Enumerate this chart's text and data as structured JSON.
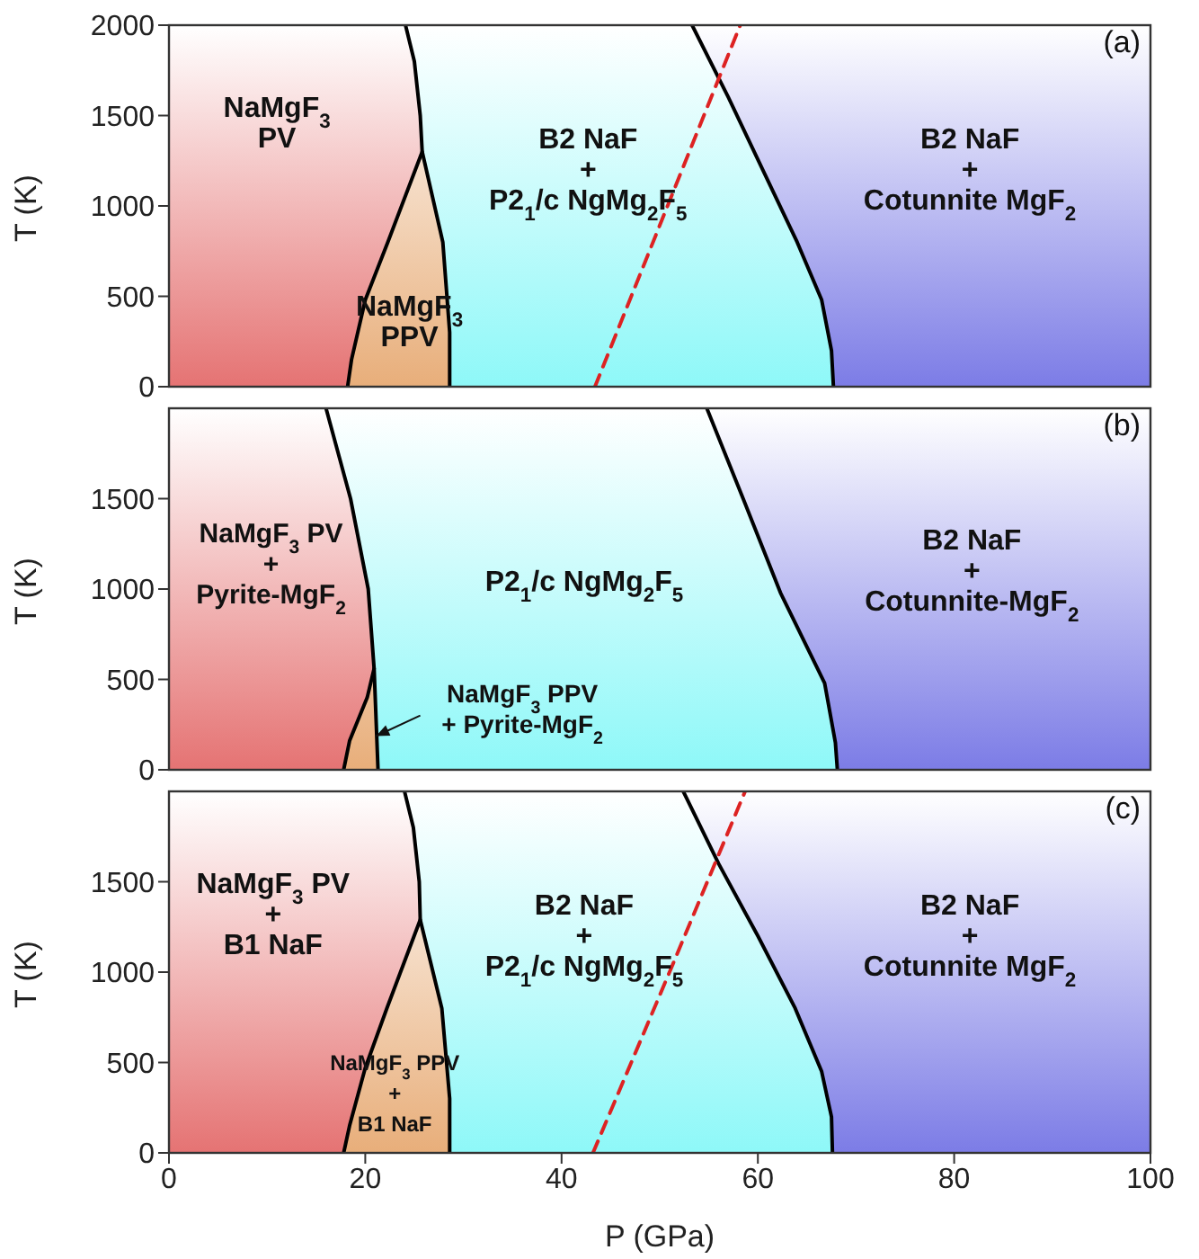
{
  "chart_data": [
    {
      "type": "line",
      "ylabel": "T (K)",
      "xlim": [
        0,
        100
      ],
      "xticks": [
        0,
        20,
        40,
        60,
        80,
        100
      ],
      "ylim": [
        0,
        2000
      ],
      "yticks": [
        0,
        500,
        1000,
        1500,
        2000
      ],
      "tick_labels": "y",
      "marker": "none",
      "series": [
        {
          "color": "#000000",
          "x": [
            24.1,
            25.0,
            25.6,
            25.8,
            22.3,
            20.0,
            18.6,
            18.2
          ],
          "values": [
            2000,
            1800,
            1500,
            1300,
            800,
            480,
            150,
            0
          ]
        },
        {
          "color": "#000000",
          "x": [
            25.8,
            27.9,
            28.6,
            28.6
          ],
          "values": [
            1300,
            800,
            300,
            0
          ]
        },
        {
          "color": "#000000",
          "x": [
            53.3,
            57.0,
            60.5,
            64.0,
            66.5,
            67.5,
            67.7
          ],
          "values": [
            2000,
            1600,
            1200,
            800,
            480,
            200,
            0
          ]
        },
        {
          "color": "#dd2222",
          "line_style": "dashed",
          "x": [
            43.4,
            50.8,
            58.2
          ],
          "values": [
            0,
            1000,
            2000
          ]
        }
      ],
      "annotations": [
        "(a)",
        "NaMgF$_{3}$\nPV",
        "NaMgF$_{3}$\nPPV",
        "B2 NaF\n+\nP2$_{1}$/c NgMg$_{2}$F$_{5}$",
        "B2 NaF\n+\nCotunnite MgF$_{2}$"
      ]
    },
    {
      "type": "line",
      "ylabel": "T (K)",
      "xlim": [
        0,
        100
      ],
      "xticks": [
        0,
        20,
        40,
        60,
        80,
        100
      ],
      "ylim": [
        0,
        2000
      ],
      "yticks": [
        0,
        500,
        1000,
        1500
      ],
      "tick_labels": "y",
      "marker": "none",
      "series": [
        {
          "color": "#000000",
          "x": [
            16.0,
            18.5,
            20.3,
            20.9,
            20.2,
            18.4,
            17.8
          ],
          "values": [
            2000,
            1500,
            1000,
            560,
            400,
            160,
            0
          ]
        },
        {
          "color": "#000000",
          "x": [
            20.9,
            21.3
          ],
          "values": [
            560,
            0
          ]
        },
        {
          "color": "#000000",
          "x": [
            54.8,
            58.5,
            62.3,
            66.8,
            67.9,
            68.1
          ],
          "values": [
            2000,
            1500,
            980,
            480,
            150,
            0
          ]
        }
      ],
      "annotations": [
        "(b)",
        "NaMgF$_{3}$ PV\n+\nPyrite-MgF$_{2}$",
        "P2$_{1}$/c NgMg$_{2}$F$_{5}$",
        "B2 NaF\n+\nCotunnite-MgF$_{2}$",
        "NaMgF$_{3}$ PPV\n+ Pyrite-MgF$_{2}$"
      ]
    },
    {
      "type": "line",
      "xlabel": "P (GPa)",
      "ylabel": "T (K)",
      "xlim": [
        0,
        100
      ],
      "xticks": [
        0,
        20,
        40,
        60,
        80,
        100
      ],
      "ylim": [
        0,
        2000
      ],
      "yticks": [
        0,
        500,
        1000,
        1500
      ],
      "marker": "none",
      "series": [
        {
          "color": "#000000",
          "x": [
            24.0,
            24.9,
            25.5,
            25.6,
            22.2,
            20.0,
            18.4,
            17.8
          ],
          "values": [
            2000,
            1800,
            1500,
            1290,
            800,
            470,
            150,
            0
          ]
        },
        {
          "color": "#000000",
          "x": [
            25.6,
            27.8,
            28.6,
            28.6
          ],
          "values": [
            1290,
            800,
            300,
            0
          ]
        },
        {
          "color": "#000000",
          "x": [
            52.4,
            56.0,
            60.0,
            63.8,
            66.5,
            67.5,
            67.6
          ],
          "values": [
            2000,
            1600,
            1200,
            800,
            450,
            200,
            0
          ]
        },
        {
          "color": "#dd2222",
          "line_style": "dashed",
          "x": [
            43.2,
            51.0,
            58.7
          ],
          "values": [
            0,
            1000,
            2000
          ]
        }
      ],
      "annotations": [
        "(c)",
        "NaMgF$_{3}$ PV\n+\nB1 NaF",
        "NaMgF$_{3}$ PPV\n+\nB1 NaF",
        "B2 NaF\n+\nP2$_{1}$/c NgMg$_{2}$F$_{5}$",
        "B2 NaF\n+\nCotunnite MgF$_{2}$"
      ]
    }
  ]
}
